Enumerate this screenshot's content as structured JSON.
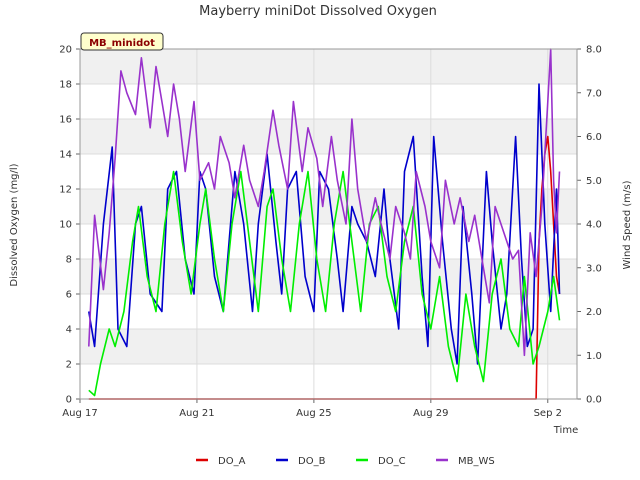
{
  "chart_data": {
    "type": "line",
    "title": "Mayberry miniDot Dissolved Oxygen",
    "badge": "MB_minidot",
    "xlabel": "Time",
    "ylabel": "Dissolved Oxygen (mg/l)",
    "y2label": "Wind Speed (m/s)",
    "xlim": [
      0,
      17.0
    ],
    "ylim": [
      0,
      20
    ],
    "y2lim": [
      0,
      8
    ],
    "x_ticks": [
      {
        "label": "Aug 17",
        "day": 0
      },
      {
        "label": "Aug 21",
        "day": 4
      },
      {
        "label": "Aug 25",
        "day": 8
      },
      {
        "label": "Aug 29",
        "day": 12
      },
      {
        "label": "Sep 2",
        "day": 16
      }
    ],
    "y_ticks": [
      "0",
      "2",
      "4",
      "6",
      "8",
      "10",
      "12",
      "14",
      "16",
      "18",
      "20"
    ],
    "y2_ticks": [
      "0.0",
      "1.0",
      "2.0",
      "3.0",
      "4.0",
      "5.0",
      "6.0",
      "7.0",
      "8.0"
    ],
    "grid": true,
    "legend_position": "bottom",
    "colors": {
      "DO_A": "#dd0000",
      "DO_B": "#0000cc",
      "DO_C": "#00ee00",
      "MB_WS": "#9932cc"
    },
    "series": [
      {
        "name": "DO_A",
        "axis": "left",
        "x": [
          0.3,
          15.5,
          15.6,
          15.7,
          15.8,
          15.9,
          16.0,
          16.1,
          16.2,
          16.3,
          16.4
        ],
        "y": [
          0,
          0,
          0,
          9,
          12,
          14,
          15,
          13,
          10,
          7,
          6
        ]
      },
      {
        "name": "DO_B",
        "axis": "left",
        "x": [
          0.3,
          0.5,
          0.8,
          1.1,
          1.3,
          1.6,
          1.9,
          2.1,
          2.4,
          2.8,
          3.0,
          3.3,
          3.6,
          3.9,
          4.1,
          4.3,
          4.6,
          4.9,
          5.1,
          5.3,
          5.6,
          5.9,
          6.1,
          6.4,
          6.7,
          6.9,
          7.1,
          7.4,
          7.7,
          8.0,
          8.2,
          8.5,
          8.8,
          9.0,
          9.3,
          9.5,
          9.8,
          10.1,
          10.4,
          10.6,
          10.9,
          11.1,
          11.4,
          11.7,
          11.9,
          12.1,
          12.4,
          12.7,
          12.9,
          13.1,
          13.4,
          13.6,
          13.9,
          14.1,
          14.4,
          14.6,
          14.9,
          15.1,
          15.3,
          15.5,
          15.7,
          15.9,
          16.1,
          16.3,
          16.4
        ],
        "y": [
          5,
          3,
          10,
          14.4,
          4,
          3,
          10,
          11,
          6,
          5,
          12,
          13,
          8,
          6,
          13,
          12,
          7,
          5,
          9,
          13,
          10,
          5,
          10,
          14,
          9,
          6,
          12,
          13,
          7,
          5,
          13,
          12,
          8,
          5,
          11,
          10,
          9,
          7,
          12,
          8,
          4,
          13,
          15,
          7,
          3,
          15,
          9,
          4,
          2,
          11,
          6,
          2,
          13,
          9,
          4,
          6,
          15,
          8,
          3,
          4,
          18,
          10,
          5,
          12,
          6
        ]
      },
      {
        "name": "DO_C",
        "axis": "left",
        "x": [
          0.3,
          0.5,
          0.7,
          1.0,
          1.2,
          1.5,
          1.8,
          2.0,
          2.3,
          2.6,
          2.9,
          3.2,
          3.5,
          3.8,
          4.1,
          4.3,
          4.6,
          4.9,
          5.2,
          5.5,
          5.8,
          6.1,
          6.4,
          6.6,
          6.9,
          7.2,
          7.5,
          7.8,
          8.1,
          8.4,
          8.7,
          9.0,
          9.3,
          9.6,
          9.9,
          10.2,
          10.5,
          10.8,
          11.1,
          11.4,
          11.7,
          12.0,
          12.3,
          12.6,
          12.9,
          13.2,
          13.5,
          13.8,
          14.1,
          14.4,
          14.7,
          15.0,
          15.2,
          15.5,
          15.7,
          16.0,
          16.2,
          16.4
        ],
        "y": [
          0.5,
          0.2,
          2,
          4,
          3,
          5,
          9,
          11,
          7,
          5,
          10,
          13,
          9,
          6,
          10,
          12,
          8,
          5,
          10,
          13,
          9,
          5,
          11,
          12,
          8,
          5,
          10,
          13,
          8,
          5,
          10,
          13,
          9,
          5,
          10,
          11,
          7,
          5,
          9,
          11,
          6,
          4,
          7,
          3,
          1,
          6,
          3,
          1,
          6,
          8,
          4,
          3,
          7,
          2,
          3,
          5,
          7,
          4.5
        ]
      },
      {
        "name": "MB_WS",
        "axis": "right",
        "x": [
          0.3,
          0.5,
          0.8,
          1.0,
          1.2,
          1.4,
          1.6,
          1.9,
          2.1,
          2.4,
          2.6,
          2.8,
          3.0,
          3.2,
          3.4,
          3.6,
          3.9,
          4.1,
          4.4,
          4.6,
          4.8,
          5.1,
          5.3,
          5.6,
          5.8,
          6.1,
          6.3,
          6.6,
          6.8,
          7.1,
          7.3,
          7.6,
          7.8,
          8.1,
          8.3,
          8.6,
          8.8,
          9.1,
          9.3,
          9.5,
          9.8,
          10.1,
          10.3,
          10.6,
          10.8,
          11.1,
          11.3,
          11.5,
          11.8,
          12.0,
          12.3,
          12.5,
          12.8,
          13.0,
          13.3,
          13.5,
          13.8,
          14.0,
          14.2,
          14.5,
          14.8,
          15.0,
          15.2,
          15.4,
          15.6,
          15.8,
          15.9,
          16.0,
          16.1,
          16.2,
          16.3,
          16.4
        ],
        "y": [
          1.2,
          4.2,
          2.5,
          3.8,
          5.5,
          7.5,
          7.0,
          6.5,
          7.8,
          6.2,
          7.6,
          6.8,
          6.0,
          7.2,
          6.4,
          5.2,
          6.8,
          5.0,
          5.4,
          4.8,
          6.0,
          5.4,
          4.6,
          5.8,
          5.0,
          4.4,
          5.2,
          6.6,
          5.8,
          4.8,
          6.8,
          5.2,
          6.2,
          5.5,
          4.4,
          6.0,
          5.0,
          4.0,
          6.4,
          4.8,
          3.6,
          4.6,
          4.0,
          3.2,
          4.4,
          3.8,
          3.2,
          5.2,
          4.4,
          3.6,
          3.0,
          5.0,
          4.0,
          4.6,
          3.6,
          4.2,
          3.0,
          2.2,
          4.4,
          3.8,
          3.2,
          3.4,
          1.0,
          3.8,
          2.8,
          4.4,
          5.6,
          6.8,
          8.0,
          5.0,
          3.8,
          5.2
        ]
      }
    ]
  }
}
